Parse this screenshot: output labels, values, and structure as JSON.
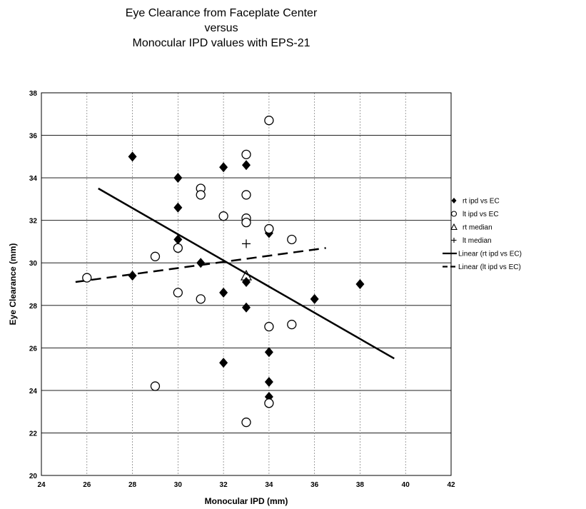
{
  "chart_data": {
    "type": "scatter",
    "title": [
      "Eye Clearance from Faceplate Center",
      "versus",
      "Monocular IPD values with EPS-21"
    ],
    "xlabel": "Monocular IPD (mm)",
    "ylabel": "Eye Clearance (mm)",
    "xlim": [
      24,
      42
    ],
    "ylim": [
      20,
      38
    ],
    "xticks": [
      24,
      26,
      28,
      30,
      32,
      34,
      36,
      38,
      40,
      42
    ],
    "yticks": [
      20,
      22,
      24,
      26,
      28,
      30,
      32,
      34,
      36,
      38
    ],
    "grid": true,
    "legend_position": "right",
    "series": [
      {
        "name": "rt ipd vs EC",
        "marker": "diamond-filled",
        "points": [
          [
            28,
            35.0
          ],
          [
            28,
            29.4
          ],
          [
            30,
            34.0
          ],
          [
            30,
            32.6
          ],
          [
            30,
            31.1
          ],
          [
            31,
            30.0
          ],
          [
            32,
            34.5
          ],
          [
            32,
            28.6
          ],
          [
            32,
            25.3
          ],
          [
            33,
            34.6
          ],
          [
            33,
            29.1
          ],
          [
            33,
            27.9
          ],
          [
            34,
            31.4
          ],
          [
            34,
            25.8
          ],
          [
            34,
            24.4
          ],
          [
            34,
            23.7
          ],
          [
            36,
            28.3
          ],
          [
            38,
            29.0
          ]
        ]
      },
      {
        "name": "lt ipd vs EC",
        "marker": "circle-open",
        "points": [
          [
            26,
            29.3
          ],
          [
            29,
            30.3
          ],
          [
            29,
            24.2
          ],
          [
            30,
            30.7
          ],
          [
            30,
            28.6
          ],
          [
            31,
            33.5
          ],
          [
            31,
            33.2
          ],
          [
            31,
            28.3
          ],
          [
            32,
            32.2
          ],
          [
            33,
            35.1
          ],
          [
            33,
            33.2
          ],
          [
            33,
            32.1
          ],
          [
            33,
            31.9
          ],
          [
            33,
            22.5
          ],
          [
            34,
            36.7
          ],
          [
            34,
            31.6
          ],
          [
            34,
            27.0
          ],
          [
            34,
            23.4
          ],
          [
            35,
            31.1
          ],
          [
            35,
            27.1
          ]
        ]
      },
      {
        "name": "rt median",
        "marker": "triangle-open",
        "points": [
          [
            33,
            29.4
          ]
        ]
      },
      {
        "name": "lt median",
        "marker": "plus",
        "points": [
          [
            33,
            30.9
          ]
        ]
      },
      {
        "name": "Linear (rt ipd vs EC)",
        "line": "solid",
        "points": [
          [
            26.5,
            33.5
          ],
          [
            39.5,
            25.5
          ]
        ]
      },
      {
        "name": "Linear (lt ipd vs EC)",
        "line": "dashed",
        "points": [
          [
            25.5,
            29.1
          ],
          [
            36.5,
            30.7
          ]
        ]
      }
    ],
    "legend": [
      "rt ipd vs EC",
      "lt ipd vs EC",
      "rt median",
      "lt median",
      "Linear (rt ipd vs EC)",
      "Linear (lt ipd vs EC)"
    ]
  }
}
